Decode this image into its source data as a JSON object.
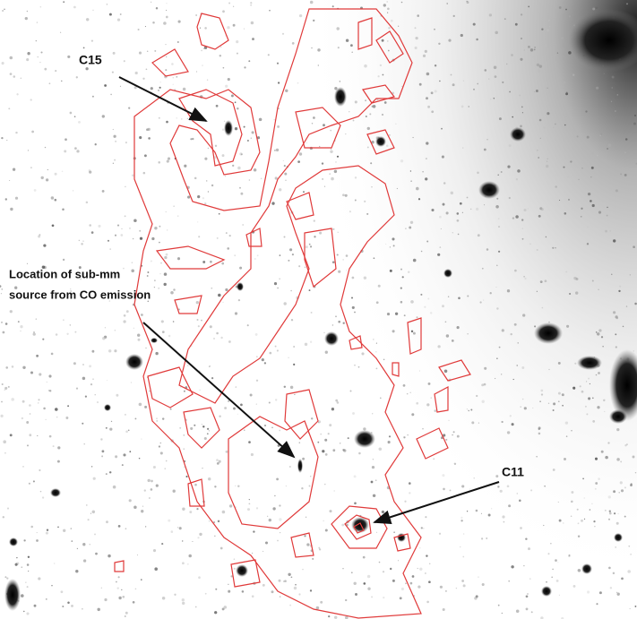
{
  "labels": {
    "c15": "C15",
    "location": [
      "Location of sub-mm",
      "source from CO emission"
    ],
    "c11": "C11"
  }
}
